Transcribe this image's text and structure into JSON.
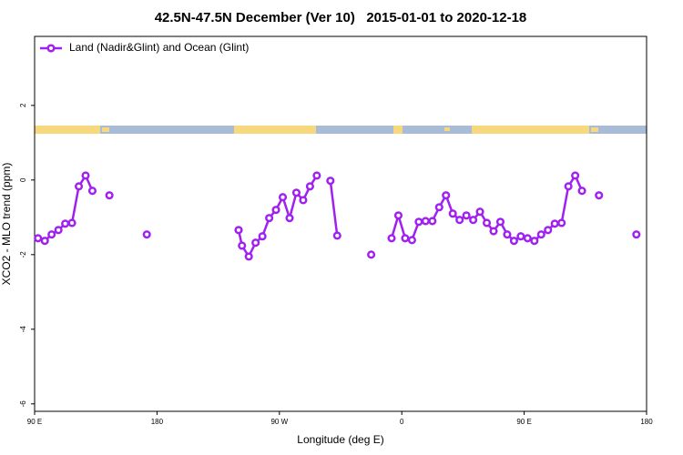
{
  "chart_data": {
    "type": "line",
    "title": "42.5N-47.5N December (Ver 10)   2015-01-01 to 2020-12-18",
    "x_label": "Longitude (deg E)",
    "y_label": "XCO2 - MLO trend (ppm)",
    "xlim": [
      90,
      540
    ],
    "ylim": [
      -6.2,
      3.85
    ],
    "xticks": [
      {
        "value": 90,
        "label": "90 E"
      },
      {
        "value": 180,
        "label": "180"
      },
      {
        "value": 270,
        "label": "90 W"
      },
      {
        "value": 360,
        "label": "0"
      },
      {
        "value": 450,
        "label": "90 E"
      },
      {
        "value": 540,
        "label": "180"
      }
    ],
    "yticks": [
      -6,
      -4,
      -2,
      0,
      2
    ],
    "legend": "top-left",
    "series": [
      {
        "name": "Land (Nadir&Glint) and Ocean (Glint)",
        "color": "#a020f0",
        "x": [
          92.5,
          97.5,
          102.5,
          107.5,
          112.5,
          117.5,
          122.5,
          127.5,
          132.5,
          137.5,
          145,
          160,
          172.5,
          200,
          240,
          242.5,
          247.5,
          252.5,
          257.5,
          262.5,
          267.5,
          272.5,
          277.5,
          282.5,
          287.5,
          292.5,
          297.5,
          302.5,
          307.5,
          312.5,
          325,
          337.5,
          345,
          352.5,
          357.5,
          362.5,
          367.5,
          372.5,
          377.5,
          382.5,
          387.5,
          392.5,
          397.5,
          402.5,
          407.5,
          412.5,
          417.5,
          422.5,
          427.5,
          432.5,
          437.5,
          442.5,
          447.5,
          452.5,
          457.5,
          462.5,
          467.5,
          472.5,
          477.5,
          482.5,
          487.5,
          492.5,
          500,
          505,
          520,
          532.5
        ],
        "values": [
          -1.56,
          -1.63,
          -1.46,
          -1.34,
          -1.17,
          -1.15,
          -0.17,
          0.12,
          -0.29,
          null,
          -0.41,
          null,
          -1.46,
          null,
          -1.34,
          -1.76,
          -2.05,
          -1.68,
          -1.51,
          -1.02,
          -0.8,
          -0.46,
          -1.02,
          -0.34,
          -0.54,
          -0.17,
          0.12,
          null,
          -0.02,
          -1.49,
          null,
          -2.0,
          null,
          -1.56,
          -0.95,
          -1.56,
          -1.61,
          -1.12,
          -1.1,
          -1.1,
          -0.73,
          -0.41,
          -0.9,
          -1.07,
          -0.95,
          -1.07,
          -0.85,
          -1.15,
          -1.37,
          -1.12,
          -1.46,
          -1.63,
          -1.51,
          -1.56,
          -1.63,
          -1.46,
          -1.34,
          -1.17,
          -1.15,
          -0.17,
          0.12,
          -0.29,
          null,
          -0.41,
          null,
          -1.46
        ]
      }
    ]
  }
}
